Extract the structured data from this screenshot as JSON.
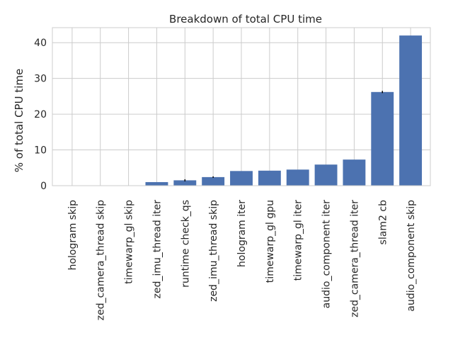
{
  "chart_data": {
    "type": "bar",
    "title": "Breakdown of total CPU time",
    "xlabel": "",
    "ylabel": "% of total CPU time",
    "ylim": [
      0,
      44.2
    ],
    "yticks": [
      0,
      10,
      20,
      30,
      40
    ],
    "grid": true,
    "bar_color": "#4c72b0",
    "error_color": "#000000",
    "grid_color": "#cccccc",
    "categories": [
      "hologram skip",
      "zed_camera_thread skip",
      "timewarp_gl skip",
      "zed_imu_thread iter",
      "runtime check_qs",
      "zed_imu_thread skip",
      "hologram iter",
      "timewarp_gl gpu",
      "timewarp_gl iter",
      "audio_component iter",
      "zed_camera_thread iter",
      "slam2 cb",
      "audio_component skip"
    ],
    "values": [
      0.05,
      0.05,
      0.1,
      1.0,
      1.5,
      2.4,
      4.1,
      4.2,
      4.5,
      5.9,
      7.3,
      26.2,
      42.0
    ],
    "errors": [
      0,
      0,
      0,
      0,
      0.3,
      0.2,
      0,
      0,
      0,
      0,
      0,
      0.3,
      0
    ]
  }
}
